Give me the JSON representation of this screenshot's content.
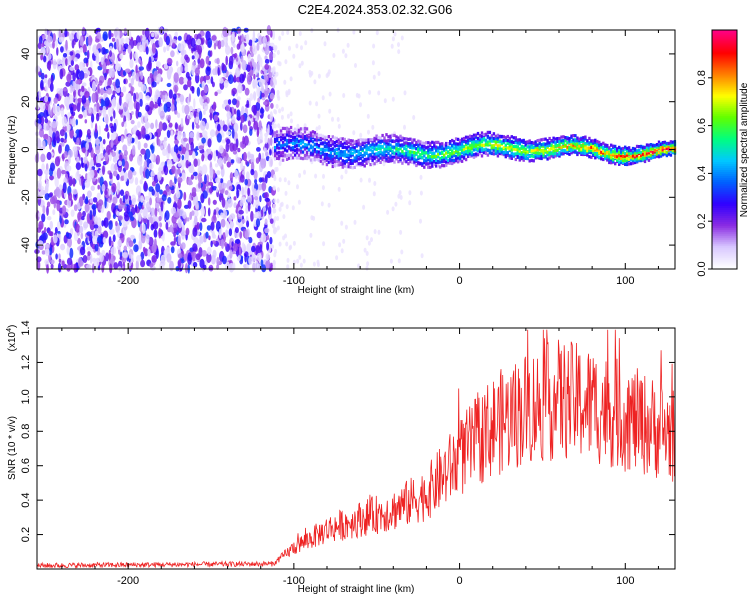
{
  "title": "C2E4.2024.353.02.32.G06",
  "chart_data": [
    {
      "type": "heatmap",
      "xlabel": "Height of straight line (km)",
      "ylabel": "Frequency (Hz)",
      "xlim": [
        -255,
        130
      ],
      "ylim": [
        -50,
        50
      ],
      "xticks": [
        -200,
        -100,
        0,
        100
      ],
      "yticks": [
        -40,
        -20,
        0,
        20,
        40
      ],
      "colorbar": {
        "label": "Normalized spectral amplitude",
        "range": [
          0,
          1
        ],
        "ticks": [
          "0.0",
          "0.2",
          "0.4",
          "0.6",
          "0.8"
        ],
        "colormap": [
          "#ffffff",
          "#d8c8ff",
          "#8a2be2",
          "#3000ff",
          "#0060ff",
          "#00c8ff",
          "#00ff80",
          "#60ff00",
          "#ffff00",
          "#ff8000",
          "#ff0000",
          "#ff0080"
        ]
      },
      "regions": [
        {
          "from_km": -255,
          "to_km": -112,
          "description_level": 0.2
        },
        {
          "from_km": -112,
          "to_km": 130,
          "ridge_frequency_hz": 0,
          "peak_level": 0.95
        }
      ]
    },
    {
      "type": "line",
      "xlabel": "Height of straight line (km)",
      "ylabel": "SNR (10 * v/v)",
      "yscale_label": "(x10",
      "yscale_exp": "4",
      "xlim": [
        -255,
        130
      ],
      "ylim": [
        0,
        1.4
      ],
      "xticks": [
        -200,
        -100,
        0,
        100
      ],
      "yticks": [
        "0.2",
        "0.4",
        "0.6",
        "0.8",
        "1.0",
        "1.2",
        "1.4"
      ],
      "color": "#ee2222",
      "envelope": [
        {
          "x": -255,
          "y": 0.02
        },
        {
          "x": -112,
          "y": 0.03
        },
        {
          "x": -100,
          "y": 0.12
        },
        {
          "x": -80,
          "y": 0.22
        },
        {
          "x": -60,
          "y": 0.28
        },
        {
          "x": -40,
          "y": 0.33
        },
        {
          "x": -20,
          "y": 0.42
        },
        {
          "x": 0,
          "y": 0.62
        },
        {
          "x": 20,
          "y": 0.8
        },
        {
          "x": 40,
          "y": 0.9
        },
        {
          "x": 60,
          "y": 0.95
        },
        {
          "x": 80,
          "y": 0.92
        },
        {
          "x": 100,
          "y": 0.85
        },
        {
          "x": 115,
          "y": 0.8
        },
        {
          "x": 130,
          "y": 0.75
        }
      ]
    }
  ]
}
